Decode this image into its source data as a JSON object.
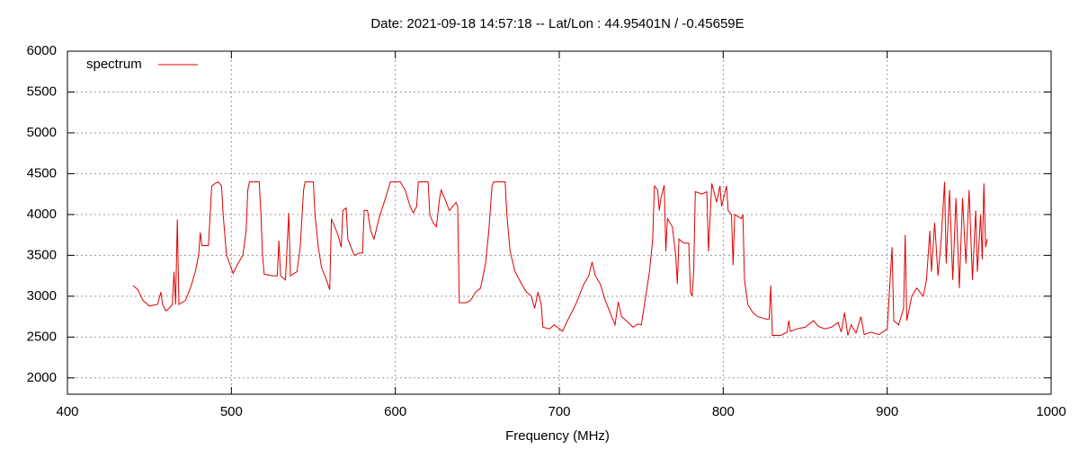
{
  "chart_data": {
    "type": "line",
    "title": "Date: 2021-09-18 14:57:18  --  Lat/Lon : 44.95401N / -0.45659E",
    "x_label": "Frequency (MHz)",
    "xlim": [
      400,
      1000
    ],
    "xticks": [
      400,
      500,
      600,
      700,
      800,
      900,
      1000
    ],
    "ylim": [
      1800,
      6000
    ],
    "yticks": [
      2000,
      2500,
      3000,
      3500,
      4000,
      4500,
      5000,
      5500,
      6000
    ],
    "grid": true,
    "legend": "top-left",
    "series": [
      {
        "name": "spectrum",
        "color": "#e00000",
        "x": [
          440,
          443,
          446,
          450,
          455,
          457,
          458,
          460,
          462,
          464,
          465,
          466,
          467,
          468,
          472,
          475,
          478,
          480,
          481,
          482,
          486,
          488,
          490,
          492,
          494,
          495,
          497,
          499,
          501,
          504,
          507,
          509,
          510,
          511,
          517,
          518,
          519,
          520,
          525,
          528,
          529,
          530,
          533,
          535,
          536,
          540,
          542,
          544,
          545,
          550,
          551,
          553,
          555,
          558,
          560,
          561,
          562,
          565,
          567,
          568,
          570,
          571,
          573,
          575,
          578,
          580,
          581,
          583,
          585,
          587,
          590,
          594,
          597,
          603,
          606,
          609,
          611,
          613,
          614,
          620,
          621,
          623,
          625,
          627,
          628,
          630,
          633,
          637,
          638,
          639,
          643,
          646,
          649,
          652,
          655,
          657,
          659,
          660,
          667,
          668,
          670,
          673,
          677,
          680,
          683,
          685,
          687,
          689,
          690,
          694,
          697,
          700,
          702,
          705,
          710,
          715,
          718,
          720,
          722,
          725,
          728,
          732,
          734,
          736,
          738,
          742,
          745,
          748,
          750,
          752,
          755,
          757,
          758,
          760,
          761,
          762,
          764,
          765,
          766,
          769,
          771,
          772,
          773,
          776,
          779,
          780,
          781,
          782,
          783,
          787,
          790,
          791,
          793,
          796,
          798,
          799,
          802,
          803,
          805,
          806,
          807,
          811,
          812,
          813,
          815,
          818,
          821,
          826,
          828,
          829,
          830,
          835,
          839,
          840,
          841,
          845,
          850,
          855,
          858,
          862,
          866,
          870,
          872,
          874,
          876,
          878,
          881,
          884,
          886,
          890,
          895,
          900,
          903,
          904,
          907,
          910,
          911,
          912,
          915,
          918,
          922,
          924,
          926,
          927,
          929,
          931,
          933,
          935,
          936,
          938,
          940,
          942,
          944,
          946,
          948,
          950,
          952,
          954,
          955,
          957,
          958,
          959,
          960,
          961
        ],
        "values": [
          3130,
          3080,
          2950,
          2880,
          2900,
          3050,
          2900,
          2820,
          2850,
          2900,
          3300,
          2900,
          3940,
          2900,
          2950,
          3100,
          3300,
          3500,
          3780,
          3620,
          3620,
          4350,
          4380,
          4400,
          4350,
          4000,
          3500,
          3400,
          3280,
          3400,
          3500,
          3800,
          4300,
          4400,
          4400,
          4000,
          3500,
          3270,
          3250,
          3250,
          3680,
          3250,
          3200,
          4020,
          3250,
          3300,
          3600,
          4300,
          4400,
          4400,
          4000,
          3600,
          3350,
          3200,
          3080,
          3950,
          3900,
          3750,
          3600,
          4050,
          4080,
          3700,
          3600,
          3500,
          3530,
          3530,
          4050,
          4050,
          3800,
          3700,
          3950,
          4200,
          4400,
          4400,
          4300,
          4100,
          4020,
          4100,
          4400,
          4400,
          4000,
          3900,
          3850,
          4200,
          4300,
          4200,
          4050,
          4150,
          4100,
          2920,
          2920,
          2950,
          3050,
          3100,
          3400,
          3800,
          4350,
          4400,
          4400,
          4000,
          3550,
          3300,
          3150,
          3050,
          3000,
          2850,
          3050,
          2900,
          2620,
          2600,
          2650,
          2600,
          2570,
          2700,
          2900,
          3150,
          3250,
          3420,
          3250,
          3150,
          2950,
          2750,
          2650,
          2930,
          2750,
          2680,
          2620,
          2660,
          2650,
          2900,
          3300,
          3700,
          4350,
          4300,
          4050,
          4200,
          4360,
          3550,
          3950,
          3850,
          3500,
          3150,
          3700,
          3650,
          3650,
          3050,
          3000,
          3300,
          4280,
          4250,
          4280,
          3550,
          4380,
          4150,
          4350,
          4100,
          4350,
          4050,
          4000,
          3380,
          4000,
          3950,
          4000,
          3200,
          2900,
          2800,
          2750,
          2720,
          2720,
          3130,
          2520,
          2520,
          2560,
          2700,
          2570,
          2600,
          2620,
          2700,
          2630,
          2600,
          2620,
          2680,
          2560,
          2800,
          2520,
          2650,
          2550,
          2750,
          2530,
          2560,
          2530,
          2600,
          3600,
          2700,
          2650,
          2850,
          3750,
          2700,
          3000,
          3100,
          3000,
          3200,
          3800,
          3300,
          3900,
          3250,
          3700,
          4400,
          3400,
          4300,
          3200,
          4200,
          3100,
          4200,
          3400,
          4300,
          3200,
          4050,
          3300,
          4000,
          3450,
          4380,
          3600,
          3700
        ]
      }
    ]
  }
}
